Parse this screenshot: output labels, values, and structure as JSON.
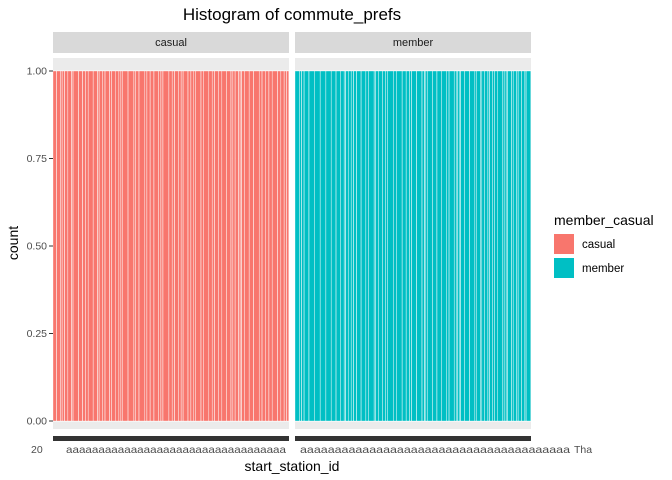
{
  "chart_data": {
    "type": "bar",
    "title": "Histogram of commute_prefs",
    "xlabel": "start_station_id",
    "ylabel": "count",
    "ylim": [
      0,
      1
    ],
    "y_ticks": [
      "0.00",
      "0.25",
      "0.50",
      "0.75",
      "1.00"
    ],
    "y_tick_values": [
      0,
      0.25,
      0.5,
      0.75,
      1.0
    ],
    "facets": [
      {
        "name": "casual",
        "color": "#F8766D",
        "bar_value": 1.0,
        "bar_count": 70
      },
      {
        "name": "member",
        "color": "#00BFC4",
        "bar_value": 1.0,
        "bar_count": 70
      }
    ],
    "legend": {
      "title": "member_casual",
      "position": "right",
      "entries": [
        {
          "label": "casual",
          "color": "#F8766D"
        },
        {
          "label": "member",
          "color": "#00BFC4"
        }
      ]
    },
    "overplotted_tick_labels": [
      "20",
      "Tha"
    ],
    "grid": true
  },
  "colors": {
    "panel_background": "#EBEBEB",
    "strip_background": "#D9D9D9",
    "grid": "#FFFFFF",
    "tick_bar": "#333333"
  }
}
